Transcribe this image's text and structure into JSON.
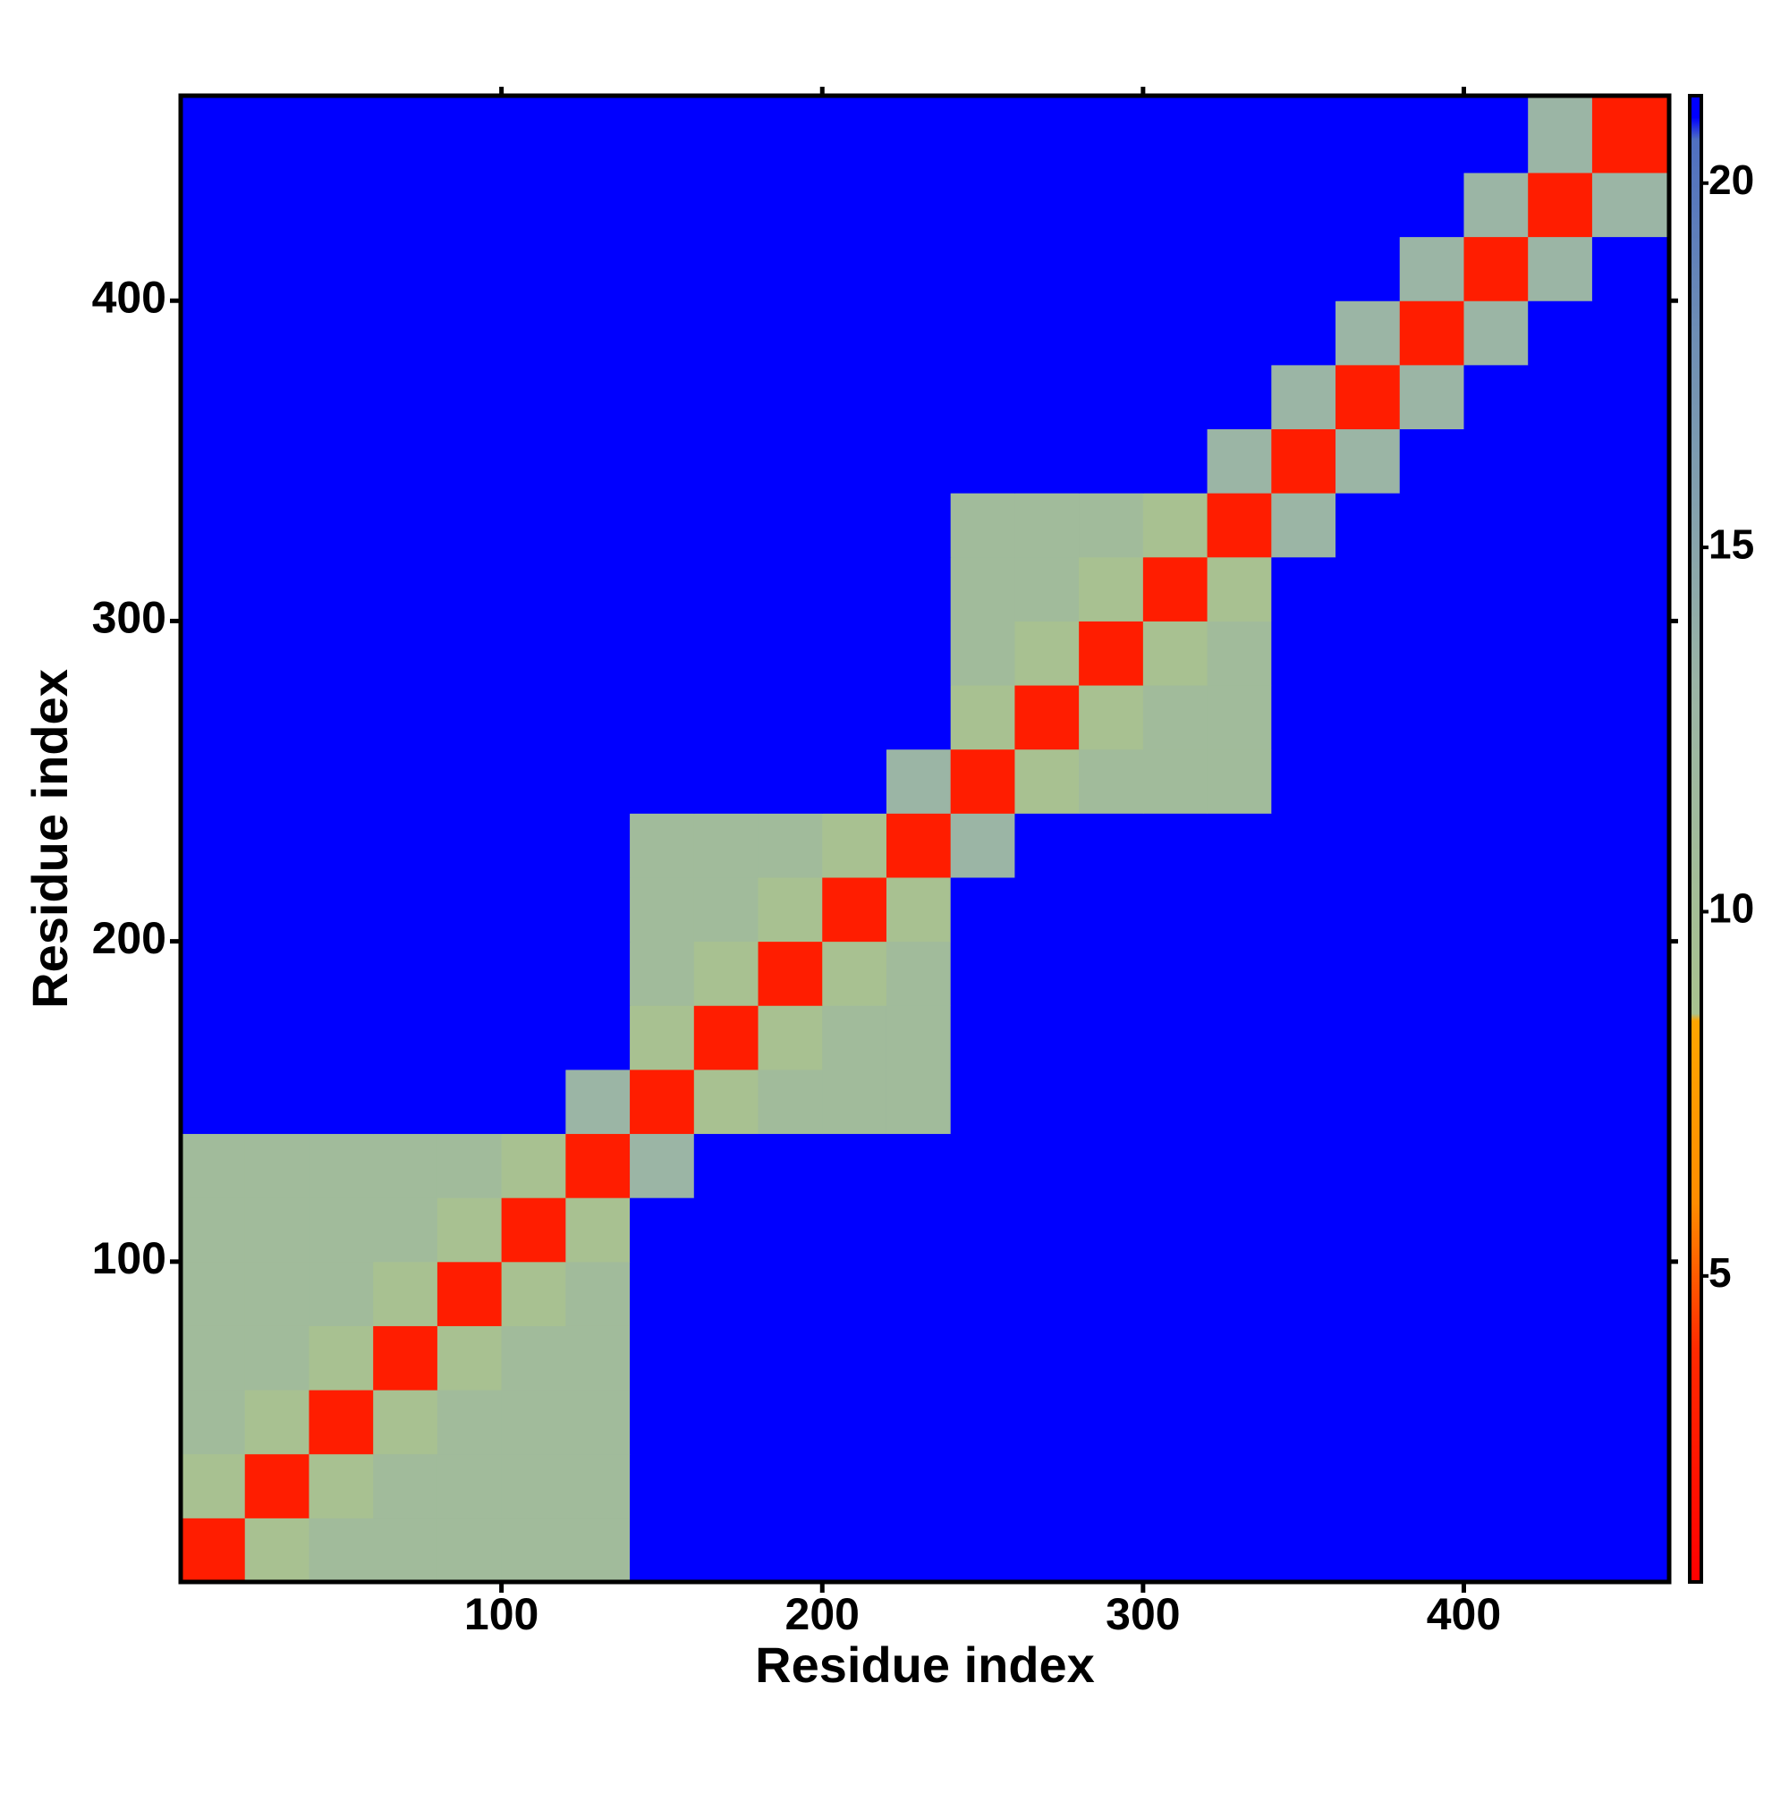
{
  "chart_data": {
    "type": "heatmap",
    "xlabel": "Residue index",
    "ylabel": "Residue index",
    "xlim": [
      0,
      464
    ],
    "ylim": [
      0,
      464
    ],
    "xticks": [
      100,
      200,
      300,
      400
    ],
    "yticks": [
      100,
      200,
      300,
      400
    ],
    "xbins": [
      0,
      20,
      40,
      60,
      80,
      100,
      120,
      140,
      160,
      180,
      200,
      220,
      240,
      260,
      280,
      300,
      320,
      340,
      360,
      380,
      400,
      420,
      440,
      464
    ],
    "ybins": [
      0,
      20,
      40,
      60,
      80,
      100,
      120,
      140,
      160,
      180,
      200,
      220,
      240,
      260,
      280,
      300,
      320,
      340,
      360,
      380,
      400,
      420,
      440,
      464
    ],
    "z": [
      [
        3,
        9,
        11,
        11,
        11,
        11,
        11,
        21,
        21,
        21,
        21,
        21,
        21,
        21,
        21,
        21,
        21,
        21,
        21,
        21,
        21,
        21,
        21
      ],
      [
        9,
        3,
        9,
        11,
        11,
        11,
        11,
        21,
        21,
        21,
        21,
        21,
        21,
        21,
        21,
        21,
        21,
        21,
        21,
        21,
        21,
        21,
        21
      ],
      [
        11,
        9,
        3,
        9,
        11,
        11,
        11,
        21,
        21,
        21,
        21,
        21,
        21,
        21,
        21,
        21,
        21,
        21,
        21,
        21,
        21,
        21,
        21
      ],
      [
        11,
        11,
        9,
        3,
        9,
        11,
        11,
        21,
        21,
        21,
        21,
        21,
        21,
        21,
        21,
        21,
        21,
        21,
        21,
        21,
        21,
        21,
        21
      ],
      [
        11,
        11,
        11,
        9,
        3,
        9,
        11,
        21,
        21,
        21,
        21,
        21,
        21,
        21,
        21,
        21,
        21,
        21,
        21,
        21,
        21,
        21,
        21
      ],
      [
        11,
        11,
        11,
        11,
        9,
        3,
        9,
        21,
        21,
        21,
        21,
        21,
        21,
        21,
        21,
        21,
        21,
        21,
        21,
        21,
        21,
        21,
        21
      ],
      [
        11,
        11,
        11,
        11,
        11,
        9,
        3,
        13,
        21,
        21,
        21,
        21,
        21,
        21,
        21,
        21,
        21,
        21,
        21,
        21,
        21,
        21,
        21
      ],
      [
        21,
        21,
        21,
        21,
        21,
        21,
        13,
        3,
        9,
        11,
        11,
        11,
        21,
        21,
        21,
        21,
        21,
        21,
        21,
        21,
        21,
        21,
        21
      ],
      [
        21,
        21,
        21,
        21,
        21,
        21,
        21,
        9,
        3,
        9,
        11,
        11,
        21,
        21,
        21,
        21,
        21,
        21,
        21,
        21,
        21,
        21,
        21
      ],
      [
        21,
        21,
        21,
        21,
        21,
        21,
        21,
        11,
        9,
        3,
        9,
        11,
        21,
        21,
        21,
        21,
        21,
        21,
        21,
        21,
        21,
        21,
        21
      ],
      [
        21,
        21,
        21,
        21,
        21,
        21,
        21,
        11,
        11,
        9,
        3,
        9,
        21,
        21,
        21,
        21,
        21,
        21,
        21,
        21,
        21,
        21,
        21
      ],
      [
        21,
        21,
        21,
        21,
        21,
        21,
        21,
        11,
        11,
        11,
        9,
        3,
        13,
        21,
        21,
        21,
        21,
        21,
        21,
        21,
        21,
        21,
        21
      ],
      [
        21,
        21,
        21,
        21,
        21,
        21,
        21,
        21,
        21,
        21,
        21,
        13,
        3,
        9,
        11,
        11,
        11,
        21,
        21,
        21,
        21,
        21,
        21
      ],
      [
        21,
        21,
        21,
        21,
        21,
        21,
        21,
        21,
        21,
        21,
        21,
        21,
        9,
        3,
        9,
        11,
        11,
        21,
        21,
        21,
        21,
        21,
        21
      ],
      [
        21,
        21,
        21,
        21,
        21,
        21,
        21,
        21,
        21,
        21,
        21,
        21,
        11,
        9,
        3,
        9,
        11,
        21,
        21,
        21,
        21,
        21,
        21
      ],
      [
        21,
        21,
        21,
        21,
        21,
        21,
        21,
        21,
        21,
        21,
        21,
        21,
        11,
        11,
        9,
        3,
        9,
        21,
        21,
        21,
        21,
        21,
        21
      ],
      [
        21,
        21,
        21,
        21,
        21,
        21,
        21,
        21,
        21,
        21,
        21,
        21,
        11,
        11,
        11,
        9,
        3,
        13,
        21,
        21,
        21,
        21,
        21
      ],
      [
        21,
        21,
        21,
        21,
        21,
        21,
        21,
        21,
        21,
        21,
        21,
        21,
        21,
        21,
        21,
        21,
        13,
        3,
        13,
        21,
        21,
        21,
        21
      ],
      [
        21,
        21,
        21,
        21,
        21,
        21,
        21,
        21,
        21,
        21,
        21,
        21,
        21,
        21,
        21,
        21,
        21,
        13,
        3,
        13,
        21,
        21,
        21
      ],
      [
        21,
        21,
        21,
        21,
        21,
        21,
        21,
        21,
        21,
        21,
        21,
        21,
        21,
        21,
        21,
        21,
        21,
        21,
        13,
        3,
        13,
        21,
        21
      ],
      [
        21,
        21,
        21,
        21,
        21,
        21,
        21,
        21,
        21,
        21,
        21,
        21,
        21,
        21,
        21,
        21,
        21,
        21,
        21,
        13,
        3,
        13,
        21
      ],
      [
        21,
        21,
        21,
        21,
        21,
        21,
        21,
        21,
        21,
        21,
        21,
        21,
        21,
        21,
        21,
        21,
        21,
        21,
        21,
        21,
        13,
        3,
        13
      ],
      [
        21,
        21,
        21,
        21,
        21,
        21,
        21,
        21,
        21,
        21,
        21,
        21,
        21,
        21,
        21,
        21,
        21,
        21,
        21,
        21,
        21,
        13,
        3
      ]
    ],
    "colorbar": {
      "lim": [
        0.8,
        21.2
      ],
      "ticks": [
        5,
        10,
        15,
        20
      ]
    },
    "colormap": [
      {
        "value": 0.8,
        "color": "#ff0000"
      },
      {
        "value": 4,
        "color": "#ff2a00"
      },
      {
        "value": 6,
        "color": "#ff8c00"
      },
      {
        "value": 8.5,
        "color": "#ffa500"
      },
      {
        "value": 8.6,
        "color": "#a9c28f"
      },
      {
        "value": 13,
        "color": "#9bb5a5"
      },
      {
        "value": 18,
        "color": "#6d8db5"
      },
      {
        "value": 20.6,
        "color": "#4f6fc0"
      },
      {
        "value": 20.9,
        "color": "#0000ff"
      }
    ]
  }
}
